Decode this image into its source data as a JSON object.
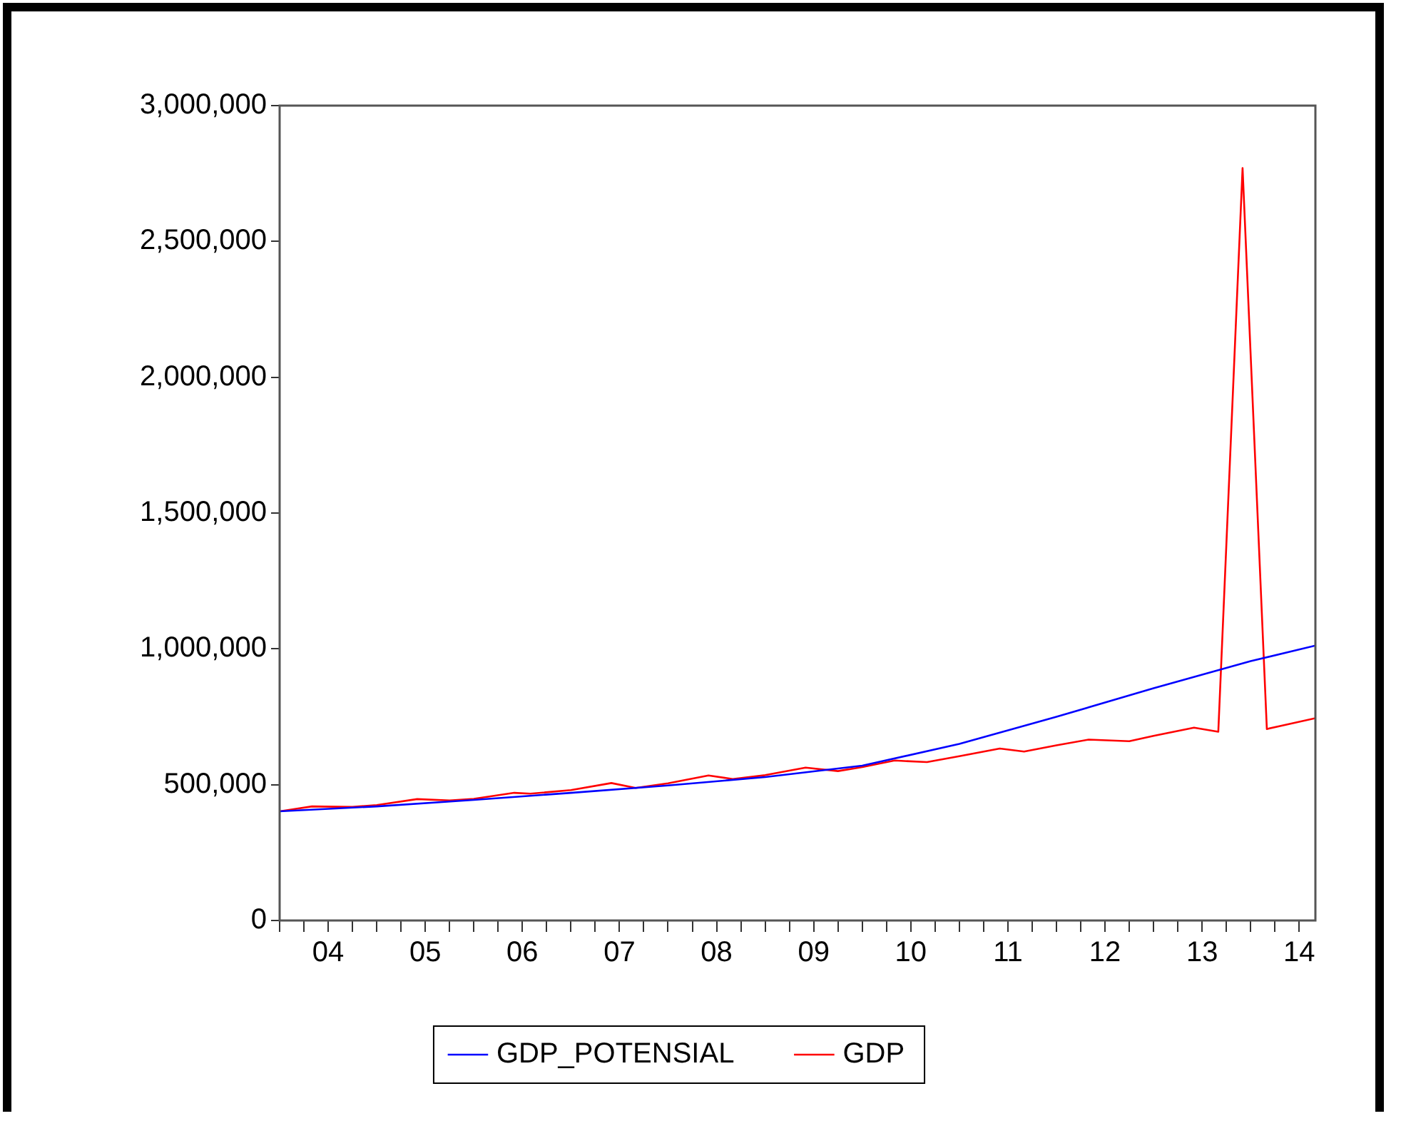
{
  "chart_data": {
    "type": "line",
    "x": [
      "2004-01",
      "2005-01",
      "2006-01",
      "2007-01",
      "2008-01",
      "2009-01",
      "2010-01",
      "2011-01",
      "2012-01",
      "2013-01",
      "2014-01",
      "2014-09"
    ],
    "series": [
      {
        "name": "GDP_POTENSIAL",
        "color": "#0000ff",
        "values": [
          402000,
          420000,
          444000,
          470000,
          497000,
          528000,
          570000,
          650000,
          750000,
          855000,
          955000,
          1012000
        ]
      },
      {
        "name": "GDP",
        "color": "#ff0000",
        "x": [
          "2004-01",
          "2004-05",
          "2004-10",
          "2005-01",
          "2005-06",
          "2005-10",
          "2006-01",
          "2006-06",
          "2006-08",
          "2007-01",
          "2007-06",
          "2007-09",
          "2008-01",
          "2008-06",
          "2008-09",
          "2009-01",
          "2009-06",
          "2009-10",
          "2010-01",
          "2010-05",
          "2010-09",
          "2011-01",
          "2011-06",
          "2011-09",
          "2012-01",
          "2012-05",
          "2012-10",
          "2013-01",
          "2013-06",
          "2013-09",
          "2013-12",
          "2014-03",
          "2014-09"
        ],
        "values": [
          402000,
          420000,
          418000,
          425000,
          447000,
          442000,
          448000,
          470000,
          467000,
          480000,
          506000,
          488000,
          505000,
          534000,
          521000,
          535000,
          563000,
          550000,
          565000,
          589000,
          583000,
          605000,
          633000,
          622000,
          645000,
          666000,
          660000,
          680000,
          710000,
          695000,
          2770000,
          705000,
          745000
        ]
      }
    ],
    "xlim": [
      "2004-01",
      "2014-09"
    ],
    "xticks": [
      {
        "value": "2004-01",
        "label": null
      },
      {
        "value": "2004-04",
        "label": null
      },
      {
        "value": "2004-07",
        "label": "04"
      },
      {
        "value": "2004-10",
        "label": null
      },
      {
        "value": "2005-01",
        "label": null
      },
      {
        "value": "2005-04",
        "label": null
      },
      {
        "value": "2005-07",
        "label": "05"
      },
      {
        "value": "2005-10",
        "label": null
      },
      {
        "value": "2006-01",
        "label": null
      },
      {
        "value": "2006-04",
        "label": null
      },
      {
        "value": "2006-07",
        "label": "06"
      },
      {
        "value": "2006-10",
        "label": null
      },
      {
        "value": "2007-01",
        "label": null
      },
      {
        "value": "2007-04",
        "label": null
      },
      {
        "value": "2007-07",
        "label": "07"
      },
      {
        "value": "2007-10",
        "label": null
      },
      {
        "value": "2008-01",
        "label": null
      },
      {
        "value": "2008-04",
        "label": null
      },
      {
        "value": "2008-07",
        "label": "08"
      },
      {
        "value": "2008-10",
        "label": null
      },
      {
        "value": "2009-01",
        "label": null
      },
      {
        "value": "2009-04",
        "label": null
      },
      {
        "value": "2009-07",
        "label": "09"
      },
      {
        "value": "2009-10",
        "label": null
      },
      {
        "value": "2010-01",
        "label": null
      },
      {
        "value": "2010-04",
        "label": null
      },
      {
        "value": "2010-07",
        "label": "10"
      },
      {
        "value": "2010-10",
        "label": null
      },
      {
        "value": "2011-01",
        "label": null
      },
      {
        "value": "2011-04",
        "label": null
      },
      {
        "value": "2011-07",
        "label": "11"
      },
      {
        "value": "2011-10",
        "label": null
      },
      {
        "value": "2012-01",
        "label": null
      },
      {
        "value": "2012-04",
        "label": null
      },
      {
        "value": "2012-07",
        "label": "12"
      },
      {
        "value": "2012-10",
        "label": null
      },
      {
        "value": "2013-01",
        "label": null
      },
      {
        "value": "2013-04",
        "label": null
      },
      {
        "value": "2013-07",
        "label": "13"
      },
      {
        "value": "2013-10",
        "label": null
      },
      {
        "value": "2014-01",
        "label": null
      },
      {
        "value": "2014-04",
        "label": null
      },
      {
        "value": "2014-07",
        "label": "14"
      }
    ],
    "ylim": [
      0,
      3000000
    ],
    "yticks": [
      {
        "value": 0,
        "label": "0"
      },
      {
        "value": 500000,
        "label": "500,000"
      },
      {
        "value": 1000000,
        "label": "1,000,000"
      },
      {
        "value": 1500000,
        "label": "1,500,000"
      },
      {
        "value": 2000000,
        "label": "2,000,000"
      },
      {
        "value": 2500000,
        "label": "2,500,000"
      },
      {
        "value": 3000000,
        "label": "3,000,000"
      }
    ],
    "grid": false,
    "legend": "bottom",
    "marker": "none",
    "line_style": "solid"
  }
}
